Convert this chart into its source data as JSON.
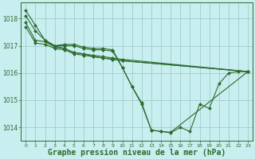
{
  "background_color": "#c8eef0",
  "grid_color": "#a0cccc",
  "line_color": "#2d6a2d",
  "marker_color": "#2d6a2d",
  "xlabel": "Graphe pression niveau de la mer (hPa)",
  "xlabel_fontsize": 7,
  "xlim": [
    -0.5,
    23.5
  ],
  "ylim": [
    1013.5,
    1018.6
  ],
  "yticks": [
    1014,
    1015,
    1016,
    1017,
    1018
  ],
  "xticks": [
    0,
    1,
    2,
    3,
    4,
    5,
    6,
    7,
    8,
    9,
    10,
    11,
    12,
    13,
    14,
    15,
    16,
    17,
    18,
    19,
    20,
    21,
    22,
    23
  ],
  "series": [
    {
      "x": [
        0,
        1,
        2,
        3,
        4,
        5,
        6,
        7,
        8,
        9,
        10,
        11,
        12,
        13,
        14,
        15,
        16,
        17,
        18,
        19,
        20,
        21,
        22,
        23
      ],
      "y": [
        1018.3,
        1017.75,
        1017.2,
        1017.0,
        1017.05,
        1017.05,
        1016.95,
        1016.9,
        1016.9,
        1016.85,
        1016.2,
        1015.5,
        1014.85,
        1013.9,
        1013.85,
        1013.8,
        1014.0,
        1013.85,
        1014.85,
        1014.7,
        1015.6,
        1016.0,
        1016.05,
        1016.05
      ]
    },
    {
      "x": [
        0,
        1,
        2,
        3,
        4,
        5,
        6,
        7,
        8,
        9,
        10,
        11,
        12,
        13,
        14,
        15,
        23
      ],
      "y": [
        1018.1,
        1017.55,
        1017.2,
        1017.0,
        1017.0,
        1017.0,
        1016.9,
        1016.85,
        1016.85,
        1016.8,
        1016.2,
        1015.5,
        1014.9,
        1013.9,
        1013.85,
        1013.82,
        1016.05
      ]
    },
    {
      "x": [
        0,
        1,
        2,
        3,
        4,
        5,
        6,
        7,
        8,
        9,
        10,
        23
      ],
      "y": [
        1017.85,
        1017.2,
        1017.15,
        1016.95,
        1016.9,
        1016.75,
        1016.7,
        1016.65,
        1016.6,
        1016.55,
        1016.5,
        1016.05
      ]
    },
    {
      "x": [
        0,
        1,
        2,
        3,
        4,
        5,
        6,
        7,
        8,
        9,
        10,
        23
      ],
      "y": [
        1017.7,
        1017.1,
        1017.05,
        1016.9,
        1016.85,
        1016.7,
        1016.65,
        1016.6,
        1016.55,
        1016.5,
        1016.45,
        1016.05
      ]
    },
    {
      "x": [
        2,
        3,
        4,
        5,
        6,
        7,
        8,
        9,
        10,
        23
      ],
      "y": [
        1017.15,
        1017.0,
        1016.9,
        1016.75,
        1016.7,
        1016.6,
        1016.55,
        1016.5,
        1016.45,
        1016.05
      ]
    }
  ]
}
